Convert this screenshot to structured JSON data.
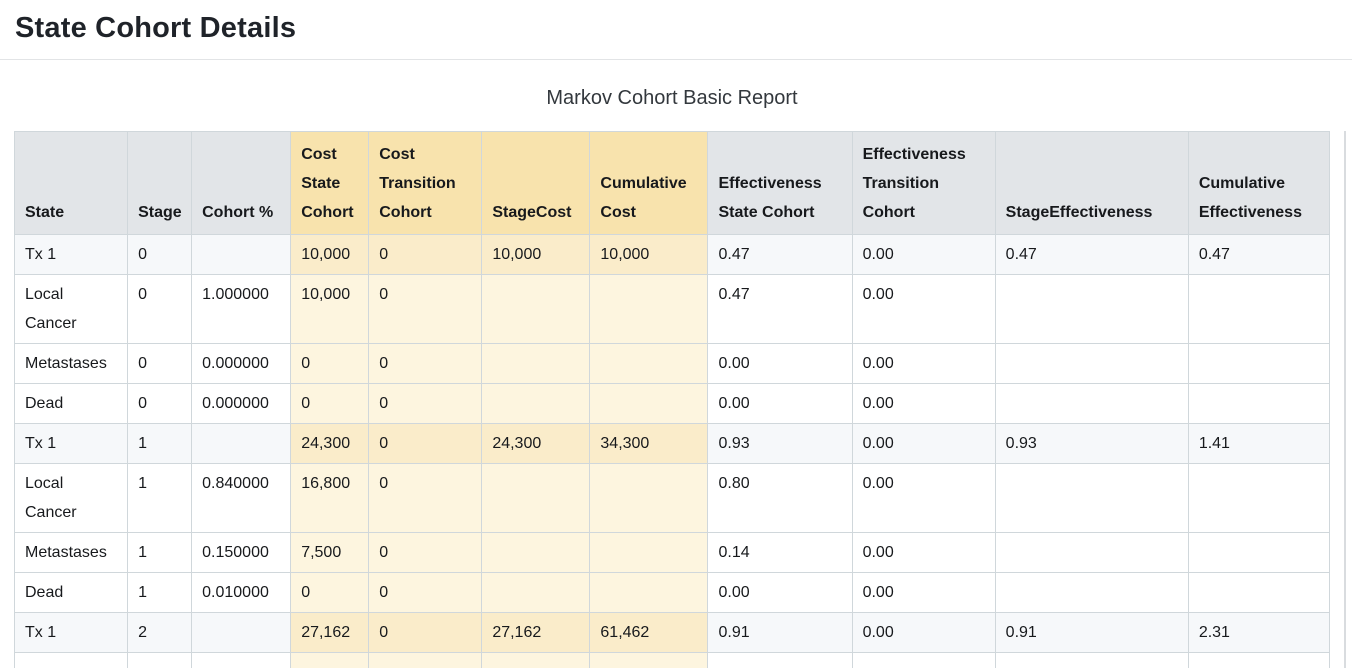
{
  "page": {
    "title": "State Cohort Details",
    "report_title": "Markov Cohort Basic Report"
  },
  "colors": {
    "title": "#1f2329",
    "subtitle": "#33383d",
    "text": "#17191c",
    "divider": "#e2e4e6",
    "border": "#d0d7db",
    "header_gray": "#e2e5e8",
    "header_yellow": "#f8e3ad",
    "cell_yellow": "#fdf5df",
    "cell_yellow_shaded": "#faecca",
    "row_shade": "#f6f8fa",
    "scroll_track": "#d9dcdf"
  },
  "table": {
    "columns": [
      {
        "key": "state",
        "label": "State",
        "group": "plain"
      },
      {
        "key": "stage",
        "label": "Stage",
        "group": "plain"
      },
      {
        "key": "cohort-pct",
        "label": "Cohort %",
        "group": "plain"
      },
      {
        "key": "cost-state",
        "label": "Cost State Cohort",
        "group": "cost"
      },
      {
        "key": "cost-transition",
        "label": "Cost Transition Cohort",
        "group": "cost"
      },
      {
        "key": "stage-cost",
        "label": "StageCost",
        "group": "cost"
      },
      {
        "key": "cum-cost",
        "label": "Cumulative Cost",
        "group": "cost"
      },
      {
        "key": "eff-state",
        "label": "Effectiveness State Cohort",
        "group": "plain"
      },
      {
        "key": "eff-transition",
        "label": "Effectiveness Transition Cohort",
        "group": "plain"
      },
      {
        "key": "stage-eff",
        "label": "StageEffectiveness",
        "group": "plain"
      },
      {
        "key": "cum-eff",
        "label": "Cumulative Effectiveness",
        "group": "plain"
      }
    ],
    "rows": [
      {
        "shaded": true,
        "cells": [
          "Tx 1",
          "0",
          "",
          "10,000",
          "0",
          "10,000",
          "10,000",
          "0.47",
          "0.00",
          "0.47",
          "0.47"
        ]
      },
      {
        "shaded": false,
        "cells": [
          "Local Cancer",
          "0",
          "1.000000",
          "10,000",
          "0",
          "",
          "",
          "0.47",
          "0.00",
          "",
          ""
        ]
      },
      {
        "shaded": false,
        "cells": [
          "Metastases",
          "0",
          "0.000000",
          "0",
          "0",
          "",
          "",
          "0.00",
          "0.00",
          "",
          ""
        ]
      },
      {
        "shaded": false,
        "cells": [
          "Dead",
          "0",
          "0.000000",
          "0",
          "0",
          "",
          "",
          "0.00",
          "0.00",
          "",
          ""
        ]
      },
      {
        "shaded": true,
        "cells": [
          "Tx 1",
          "1",
          "",
          "24,300",
          "0",
          "24,300",
          "34,300",
          "0.93",
          "0.00",
          "0.93",
          "1.41"
        ]
      },
      {
        "shaded": false,
        "cells": [
          "Local Cancer",
          "1",
          "0.840000",
          "16,800",
          "0",
          "",
          "",
          "0.80",
          "0.00",
          "",
          ""
        ]
      },
      {
        "shaded": false,
        "cells": [
          "Metastases",
          "1",
          "0.150000",
          "7,500",
          "0",
          "",
          "",
          "0.14",
          "0.00",
          "",
          ""
        ]
      },
      {
        "shaded": false,
        "cells": [
          "Dead",
          "1",
          "0.010000",
          "0",
          "0",
          "",
          "",
          "0.00",
          "0.00",
          "",
          ""
        ]
      },
      {
        "shaded": true,
        "cells": [
          "Tx 1",
          "2",
          "",
          "27,162",
          "0",
          "27,162",
          "61,462",
          "0.91",
          "0.00",
          "0.91",
          "2.31"
        ]
      },
      {
        "shaded": false,
        "cells": [
          "",
          "",
          "",
          "",
          "",
          "",
          "",
          "",
          "",
          "",
          ""
        ]
      }
    ]
  }
}
